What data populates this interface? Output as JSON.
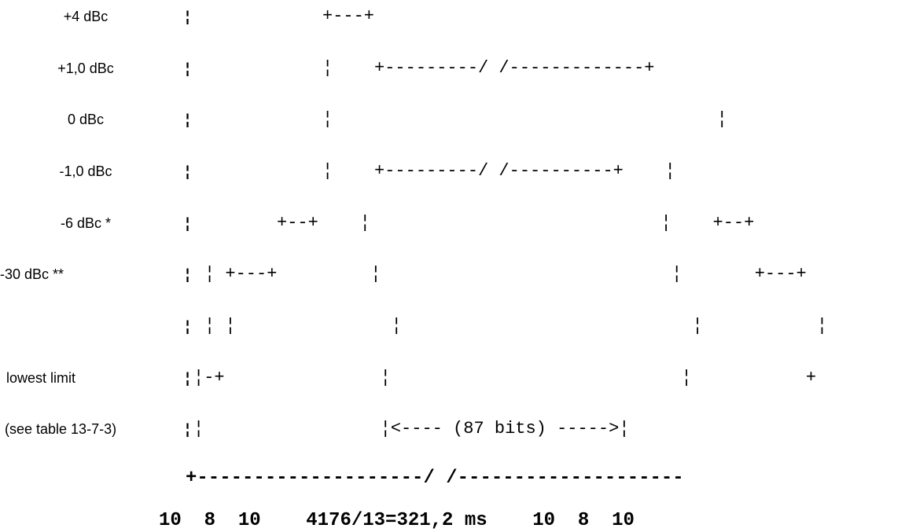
{
  "levels": [
    {
      "id": "plus4",
      "label": "+4 dBc"
    },
    {
      "id": "plus1",
      "label": "+1,0 dBc"
    },
    {
      "id": "zero",
      "label": "0 dBc"
    },
    {
      "id": "minus1",
      "label": "-1,0 dBc"
    },
    {
      "id": "minus6",
      "label": "-6 dBc *"
    },
    {
      "id": "minus30",
      "label": "-30 dBc **"
    },
    {
      "id": "blank",
      "label": ""
    },
    {
      "id": "lowest",
      "label": "lowest limit"
    },
    {
      "id": "seetable",
      "label": "(see table 13-7-3)"
    }
  ],
  "mask_lines": [
    "+---+",
    "¦    +---------/ /-------------+",
    "¦                                     ¦",
    "¦    +---------/ /----------+    ¦",
    "+--+    ¦                            ¦    +--+",
    "¦ +---+         ¦                            ¦       +---+",
    "¦ ¦               ¦                            ¦           ¦",
    "¦-+               ¦                            ¦           +",
    "¦                 ¦<---- (87 bits) ----->¦"
  ],
  "axis_line": "+--------------------/ /--------------------",
  "timing_line": "10  8  10    4176/13=321,2 ms    10  8  10"
}
